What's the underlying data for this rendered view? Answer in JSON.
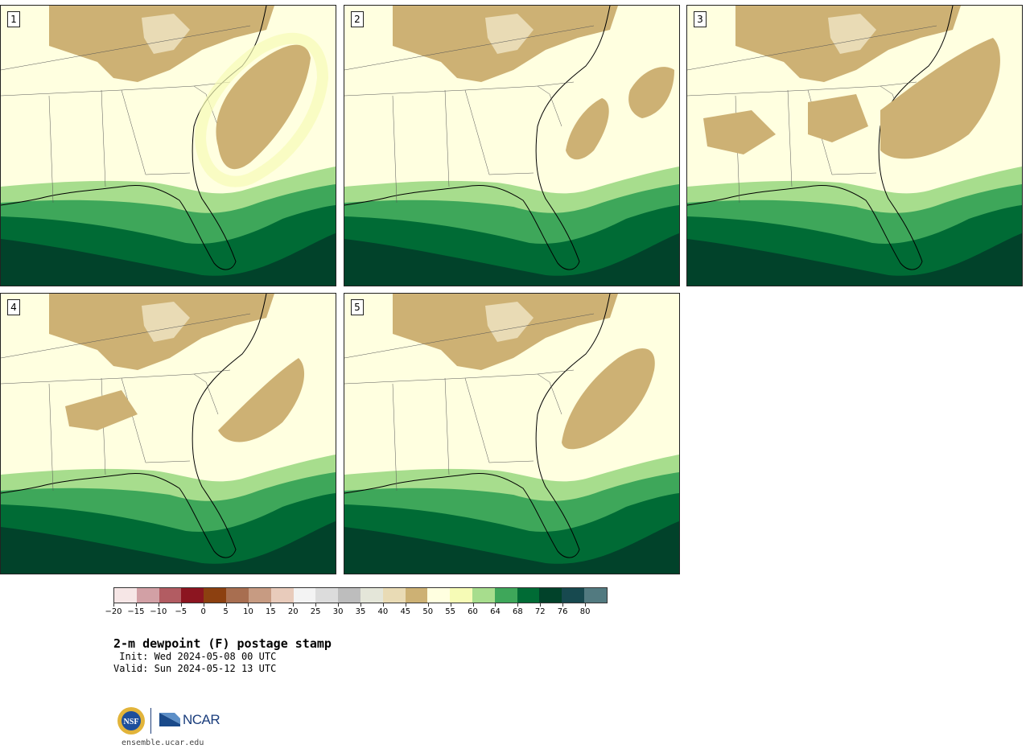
{
  "panels": [
    {
      "label": "1"
    },
    {
      "label": "2"
    },
    {
      "label": "3"
    },
    {
      "label": "4"
    },
    {
      "label": "5"
    }
  ],
  "colorbar": {
    "colors": [
      "#f6e6e6",
      "#d2a0a5",
      "#b25c62",
      "#8c1520",
      "#8c4010",
      "#a86e50",
      "#c79b82",
      "#e8cbbb",
      "#f3f3f3",
      "#dcdcdc",
      "#bdbdbd",
      "#e4e6d9",
      "#e9dbb5",
      "#cdb174",
      "#ffffe0",
      "#f6fbb6",
      "#a7dd8d",
      "#3ea75a",
      "#006b35",
      "#01422a",
      "#17494f",
      "#527a80"
    ],
    "tick_labels": [
      "−20",
      "−15",
      "−10",
      "−5",
      "0",
      "5",
      "10",
      "15",
      "20",
      "25",
      "30",
      "35",
      "40",
      "45",
      "50",
      "55",
      "60",
      "64",
      "68",
      "72",
      "76",
      "80"
    ]
  },
  "title": "2-m dewpoint (F) postage stamp",
  "init": " Init: Wed 2024-05-08 00 UTC",
  "valid": "Valid: Sun 2024-05-12 13 UTC",
  "logos": {
    "nsf": "NSF",
    "ncar": "NCAR"
  },
  "site": "ensemble.ucar.edu"
}
